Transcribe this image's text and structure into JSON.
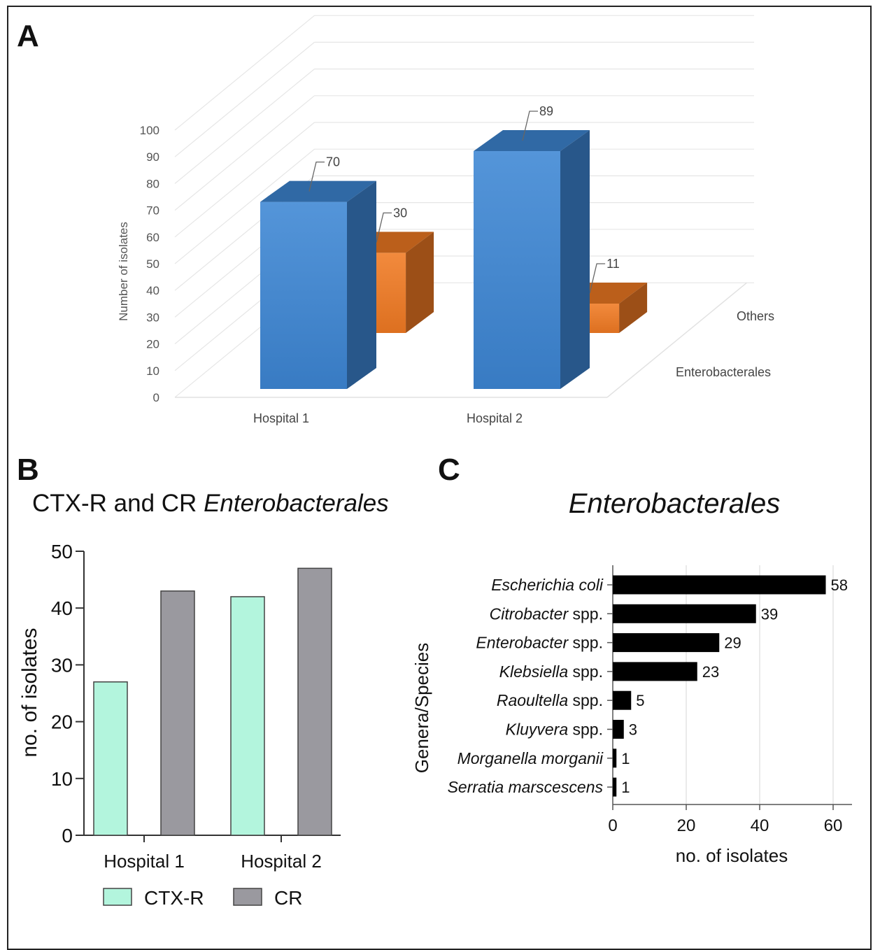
{
  "panels": {
    "a": {
      "letter": "A"
    },
    "b": {
      "letter": "B",
      "title_prefix": "CTX-R and CR ",
      "title_italic": "Enterobacterales"
    },
    "c": {
      "letter": "C",
      "title": "Enterobacterales"
    }
  },
  "chart_data": [
    {
      "id": "A",
      "type": "bar",
      "style": "3d-grouped",
      "categories": [
        "Hospital 1",
        "Hospital 2"
      ],
      "series": [
        {
          "name": "Enterobacterales",
          "values": [
            70,
            89
          ],
          "color": "#3d86d4"
        },
        {
          "name": "Others",
          "values": [
            30,
            11
          ],
          "color": "#f07a23"
        }
      ],
      "ylabel": "Number of isolates",
      "ylim": [
        0,
        100
      ],
      "yticks": [
        0,
        10,
        20,
        30,
        40,
        50,
        60,
        70,
        80,
        90,
        100
      ],
      "data_labels": true,
      "grid": true
    },
    {
      "id": "B",
      "type": "bar",
      "title": "CTX-R and CR Enterobacterales",
      "categories": [
        "Hospital 1",
        "Hospital 2"
      ],
      "series": [
        {
          "name": "CTX-R",
          "values": [
            27,
            42
          ],
          "color": "#b3f5dd"
        },
        {
          "name": "CR",
          "values": [
            43,
            47
          ],
          "color": "#9a999f"
        }
      ],
      "ylabel": "no. of isolates",
      "ylim": [
        0,
        50
      ],
      "yticks": [
        0,
        10,
        20,
        30,
        40,
        50
      ],
      "legend": "bottom",
      "grid": false
    },
    {
      "id": "C",
      "type": "bar",
      "orientation": "horizontal",
      "title": "Enterobacterales",
      "categories": [
        {
          "italic": "Escherichia coli",
          "suffix": ""
        },
        {
          "italic": "Citrobacter",
          "suffix": " spp."
        },
        {
          "italic": "Enterobacter",
          "suffix": " spp."
        },
        {
          "italic": "Klebsiella",
          "suffix": " spp."
        },
        {
          "italic": "Raoultella",
          "suffix": " spp."
        },
        {
          "italic": "Kluyvera",
          "suffix": " spp."
        },
        {
          "italic": "Morganella morganii",
          "suffix": ""
        },
        {
          "italic": "Serratia marscescens",
          "suffix": ""
        }
      ],
      "values": [
        58,
        39,
        29,
        23,
        5,
        3,
        1,
        1
      ],
      "color": "#000000",
      "xlabel": "no. of isolates",
      "ylabel": "Genera/Species",
      "xlim": [
        0,
        65
      ],
      "xticks": [
        0,
        20,
        40,
        60
      ],
      "data_labels": true,
      "grid": true
    }
  ]
}
